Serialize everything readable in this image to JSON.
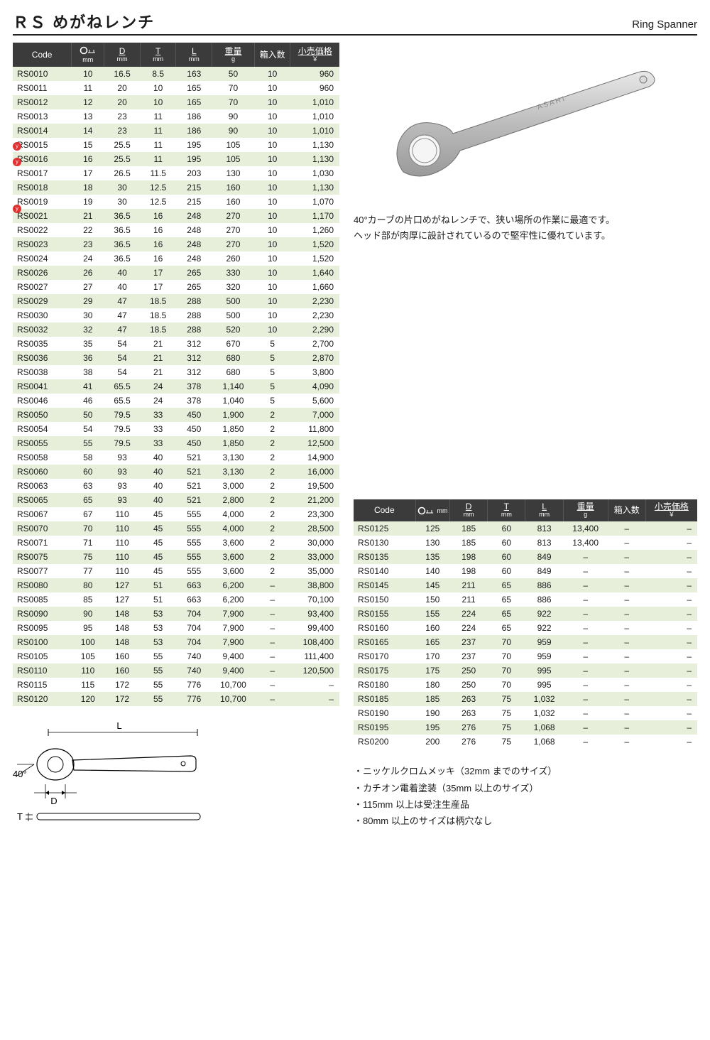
{
  "titleJp": "ＲＳ めがねレンチ",
  "titleEn": "Ring Spanner",
  "headers": {
    "code": "Code",
    "size": "mm",
    "d": "D",
    "d_u": "mm",
    "t": "T",
    "t_u": "mm",
    "l": "L",
    "l_u": "mm",
    "wt": "重量",
    "wt_u": "g",
    "qty": "箱入数",
    "price": "小売価格",
    "price_u": "￥"
  },
  "descLines": [
    "40°カーブの片口めがねレンチで、狭い場所の作業に最適です。",
    "ヘッド部が肉厚に設計されているので堅牢性に優れています。"
  ],
  "notes": [
    "・ニッケルクロムメッキ（32mm までのサイズ）",
    "・カチオン電着塗装（35mm 以上のサイズ）",
    "・115mm 以上は受注生産品",
    "・80mm 以上のサイズは柄穴なし"
  ],
  "diagram": {
    "L": "L",
    "D": "D",
    "T": "T",
    "angle": "40°"
  },
  "rows1": [
    [
      "RS0010",
      "10",
      "16.5",
      "8.5",
      "163",
      "50",
      "10",
      "960"
    ],
    [
      "RS0011",
      "11",
      "20",
      "10",
      "165",
      "70",
      "10",
      "960"
    ],
    [
      "RS0012",
      "12",
      "20",
      "10",
      "165",
      "70",
      "10",
      "1,010"
    ],
    [
      "RS0013",
      "13",
      "23",
      "11",
      "186",
      "90",
      "10",
      "1,010"
    ],
    [
      "RS0014",
      "14",
      "23",
      "11",
      "186",
      "90",
      "10",
      "1,010"
    ],
    [
      "RS0015",
      "15",
      "25.5",
      "11",
      "195",
      "105",
      "10",
      "1,130"
    ],
    [
      "RS0016",
      "16",
      "25.5",
      "11",
      "195",
      "105",
      "10",
      "1,130"
    ],
    [
      "RS0017",
      "17",
      "26.5",
      "11.5",
      "203",
      "130",
      "10",
      "1,030"
    ],
    [
      "RS0018",
      "18",
      "30",
      "12.5",
      "215",
      "160",
      "10",
      "1,130"
    ],
    [
      "RS0019",
      "19",
      "30",
      "12.5",
      "215",
      "160",
      "10",
      "1,070"
    ],
    [
      "RS0021",
      "21",
      "36.5",
      "16",
      "248",
      "270",
      "10",
      "1,170"
    ],
    [
      "RS0022",
      "22",
      "36.5",
      "16",
      "248",
      "270",
      "10",
      "1,260"
    ],
    [
      "RS0023",
      "23",
      "36.5",
      "16",
      "248",
      "270",
      "10",
      "1,520"
    ],
    [
      "RS0024",
      "24",
      "36.5",
      "16",
      "248",
      "260",
      "10",
      "1,520"
    ],
    [
      "RS0026",
      "26",
      "40",
      "17",
      "265",
      "330",
      "10",
      "1,640"
    ],
    [
      "RS0027",
      "27",
      "40",
      "17",
      "265",
      "320",
      "10",
      "1,660"
    ],
    [
      "RS0029",
      "29",
      "47",
      "18.5",
      "288",
      "500",
      "10",
      "2,230"
    ],
    [
      "RS0030",
      "30",
      "47",
      "18.5",
      "288",
      "500",
      "10",
      "2,230"
    ],
    [
      "RS0032",
      "32",
      "47",
      "18.5",
      "288",
      "520",
      "10",
      "2,290"
    ],
    [
      "RS0035",
      "35",
      "54",
      "21",
      "312",
      "670",
      "5",
      "2,700"
    ],
    [
      "RS0036",
      "36",
      "54",
      "21",
      "312",
      "680",
      "5",
      "2,870"
    ],
    [
      "RS0038",
      "38",
      "54",
      "21",
      "312",
      "680",
      "5",
      "3,800"
    ],
    [
      "RS0041",
      "41",
      "65.5",
      "24",
      "378",
      "1,140",
      "5",
      "4,090"
    ],
    [
      "RS0046",
      "46",
      "65.5",
      "24",
      "378",
      "1,040",
      "5",
      "5,600"
    ],
    [
      "RS0050",
      "50",
      "79.5",
      "33",
      "450",
      "1,900",
      "2",
      "7,000"
    ],
    [
      "RS0054",
      "54",
      "79.5",
      "33",
      "450",
      "1,850",
      "2",
      "11,800"
    ],
    [
      "RS0055",
      "55",
      "79.5",
      "33",
      "450",
      "1,850",
      "2",
      "12,500"
    ],
    [
      "RS0058",
      "58",
      "93",
      "40",
      "521",
      "3,130",
      "2",
      "14,900"
    ],
    [
      "RS0060",
      "60",
      "93",
      "40",
      "521",
      "3,130",
      "2",
      "16,000"
    ],
    [
      "RS0063",
      "63",
      "93",
      "40",
      "521",
      "3,000",
      "2",
      "19,500"
    ],
    [
      "RS0065",
      "65",
      "93",
      "40",
      "521",
      "2,800",
      "2",
      "21,200"
    ],
    [
      "RS0067",
      "67",
      "110",
      "45",
      "555",
      "4,000",
      "2",
      "23,300"
    ],
    [
      "RS0070",
      "70",
      "110",
      "45",
      "555",
      "4,000",
      "2",
      "28,500"
    ],
    [
      "RS0071",
      "71",
      "110",
      "45",
      "555",
      "3,600",
      "2",
      "30,000"
    ],
    [
      "RS0075",
      "75",
      "110",
      "45",
      "555",
      "3,600",
      "2",
      "33,000"
    ],
    [
      "RS0077",
      "77",
      "110",
      "45",
      "555",
      "3,600",
      "2",
      "35,000"
    ],
    [
      "RS0080",
      "80",
      "127",
      "51",
      "663",
      "6,200",
      "–",
      "38,800"
    ],
    [
      "RS0085",
      "85",
      "127",
      "51",
      "663",
      "6,200",
      "–",
      "70,100"
    ],
    [
      "RS0090",
      "90",
      "148",
      "53",
      "704",
      "7,900",
      "–",
      "93,400"
    ],
    [
      "RS0095",
      "95",
      "148",
      "53",
      "704",
      "7,900",
      "–",
      "99,400"
    ],
    [
      "RS0100",
      "100",
      "148",
      "53",
      "704",
      "7,900",
      "–",
      "108,400"
    ],
    [
      "RS0105",
      "105",
      "160",
      "55",
      "740",
      "9,400",
      "–",
      "111,400"
    ],
    [
      "RS0110",
      "110",
      "160",
      "55",
      "740",
      "9,400",
      "–",
      "120,500"
    ],
    [
      "RS0115",
      "115",
      "172",
      "55",
      "776",
      "10,700",
      "–",
      "–"
    ],
    [
      "RS0120",
      "120",
      "172",
      "55",
      "776",
      "10,700",
      "–",
      "–"
    ]
  ],
  "rows2": [
    [
      "RS0125",
      "125",
      "185",
      "60",
      "813",
      "13,400",
      "–",
      "–"
    ],
    [
      "RS0130",
      "130",
      "185",
      "60",
      "813",
      "13,400",
      "–",
      "–"
    ],
    [
      "RS0135",
      "135",
      "198",
      "60",
      "849",
      "–",
      "–",
      "–"
    ],
    [
      "RS0140",
      "140",
      "198",
      "60",
      "849",
      "–",
      "–",
      "–"
    ],
    [
      "RS0145",
      "145",
      "211",
      "65",
      "886",
      "–",
      "–",
      "–"
    ],
    [
      "RS0150",
      "150",
      "211",
      "65",
      "886",
      "–",
      "–",
      "–"
    ],
    [
      "RS0155",
      "155",
      "224",
      "65",
      "922",
      "–",
      "–",
      "–"
    ],
    [
      "RS0160",
      "160",
      "224",
      "65",
      "922",
      "–",
      "–",
      "–"
    ],
    [
      "RS0165",
      "165",
      "237",
      "70",
      "959",
      "–",
      "–",
      "–"
    ],
    [
      "RS0170",
      "170",
      "237",
      "70",
      "959",
      "–",
      "–",
      "–"
    ],
    [
      "RS0175",
      "175",
      "250",
      "70",
      "995",
      "–",
      "–",
      "–"
    ],
    [
      "RS0180",
      "180",
      "250",
      "70",
      "995",
      "–",
      "–",
      "–"
    ],
    [
      "RS0185",
      "185",
      "263",
      "75",
      "1,032",
      "–",
      "–",
      "–"
    ],
    [
      "RS0190",
      "190",
      "263",
      "75",
      "1,032",
      "–",
      "–",
      "–"
    ],
    [
      "RS0195",
      "195",
      "276",
      "75",
      "1,068",
      "–",
      "–",
      "–"
    ],
    [
      "RS0200",
      "200",
      "276",
      "75",
      "1,068",
      "–",
      "–",
      "–"
    ]
  ],
  "colWidths": [
    "18%",
    "10%",
    "11%",
    "11%",
    "11%",
    "13%",
    "11%",
    "15%"
  ]
}
